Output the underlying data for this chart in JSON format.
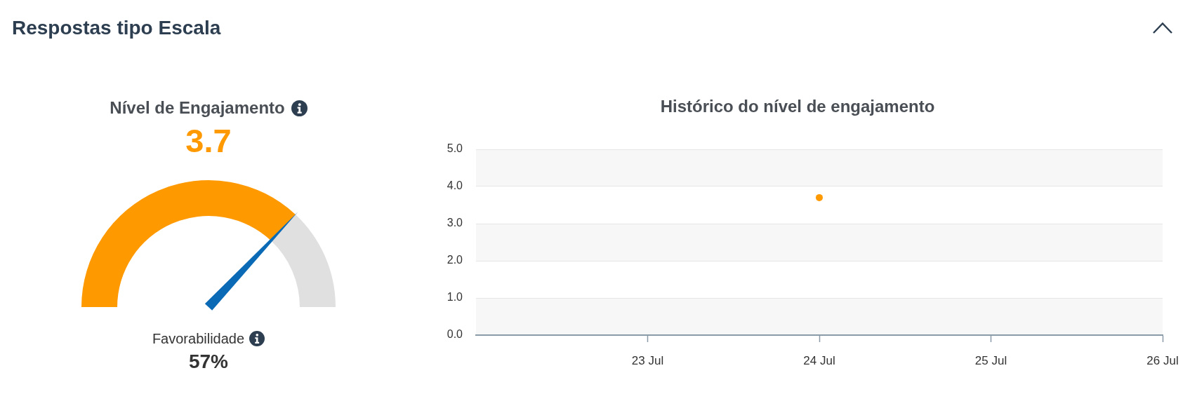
{
  "chart_data": [
    {
      "type": "other",
      "title": "Respostas tipo Escala"
    },
    {
      "type": "donut",
      "title": "Nível de Engajamento",
      "categories": [
        null,
        null
      ],
      "values": [
        74,
        26
      ],
      "colors": [
        "#ff9900",
        "#e0e0e0"
      ],
      "needle": null,
      "annotations": [
        "3.7",
        "Favorabilidade",
        "57%"
      ]
    },
    {
      "type": "scatter",
      "title": "Histórico do nível de engajamento",
      "x": [
        "--07-24"
      ],
      "values": [
        3.7
      ],
      "color": "#ff9900",
      "marker": "circle",
      "xlim": [
        "--07-22",
        "--07-26"
      ],
      "xticks": [
        {
          "value": "--07-23",
          "label": "23 Jul"
        },
        {
          "value": "--07-24",
          "label": "24 Jul"
        },
        {
          "value": "--07-25",
          "label": "25 Jul"
        },
        {
          "value": "--07-26",
          "label": "26 Jul"
        }
      ],
      "ylim": [
        0,
        5
      ],
      "yticks": [
        {
          "value": 0,
          "label": "0.0"
        },
        {
          "value": 1,
          "label": "1.0"
        },
        {
          "value": 2,
          "label": "2.0"
        },
        {
          "value": 3,
          "label": "3.0"
        },
        {
          "value": 4,
          "label": "4.0"
        },
        {
          "value": 5,
          "label": "5.0"
        }
      ],
      "grid": "y",
      "bands": [
        {
          "axis": "y",
          "from": 0,
          "to": 1,
          "color": "#f7f7f7"
        },
        {
          "axis": "y",
          "from": 2,
          "to": 3,
          "color": "#f7f7f7"
        },
        {
          "axis": "y",
          "from": 4,
          "to": 5,
          "color": "#f7f7f7"
        }
      ]
    }
  ]
}
